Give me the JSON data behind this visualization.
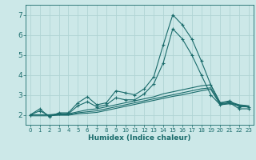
{
  "xlabel": "Humidex (Indice chaleur)",
  "xlim_min": -0.5,
  "xlim_max": 23.5,
  "ylim_min": 1.5,
  "ylim_max": 7.5,
  "xticks": [
    0,
    1,
    2,
    3,
    4,
    5,
    6,
    7,
    8,
    9,
    10,
    11,
    12,
    13,
    14,
    15,
    16,
    17,
    18,
    19,
    20,
    21,
    22,
    23
  ],
  "yticks": [
    2,
    3,
    4,
    5,
    6,
    7
  ],
  "background_color": "#cce8e8",
  "grid_color": "#b0d4d4",
  "line_color": "#1a6b6b",
  "xlabel_fontsize": 6.5,
  "xtick_fontsize": 5.0,
  "ytick_fontsize": 6.5,
  "lines": [
    {
      "y": [
        2.0,
        2.3,
        1.9,
        2.1,
        2.1,
        2.6,
        2.9,
        2.5,
        2.6,
        3.2,
        3.1,
        3.0,
        3.3,
        3.9,
        5.5,
        7.0,
        6.5,
        5.8,
        4.7,
        3.5,
        2.6,
        2.7,
        2.4,
        2.4
      ],
      "marker": "+"
    },
    {
      "y": [
        2.0,
        2.2,
        1.95,
        2.05,
        2.05,
        2.45,
        2.65,
        2.4,
        2.5,
        2.85,
        2.75,
        2.75,
        3.05,
        3.55,
        4.6,
        6.3,
        5.8,
        5.0,
        4.0,
        3.0,
        2.5,
        2.6,
        2.3,
        2.3
      ],
      "marker": "+"
    },
    {
      "y": [
        2.0,
        2.0,
        2.0,
        2.05,
        2.05,
        2.15,
        2.25,
        2.3,
        2.4,
        2.5,
        2.6,
        2.7,
        2.8,
        2.9,
        3.05,
        3.15,
        3.25,
        3.35,
        3.45,
        3.5,
        2.6,
        2.65,
        2.5,
        2.45
      ],
      "marker": null
    },
    {
      "y": [
        2.0,
        2.0,
        2.0,
        2.0,
        2.0,
        2.1,
        2.15,
        2.2,
        2.3,
        2.4,
        2.5,
        2.6,
        2.7,
        2.8,
        2.9,
        3.0,
        3.1,
        3.2,
        3.3,
        3.35,
        2.55,
        2.6,
        2.48,
        2.42
      ],
      "marker": null
    },
    {
      "y": [
        1.95,
        1.95,
        1.95,
        1.98,
        1.98,
        2.05,
        2.08,
        2.12,
        2.22,
        2.32,
        2.42,
        2.52,
        2.62,
        2.72,
        2.82,
        2.92,
        3.0,
        3.1,
        3.2,
        3.28,
        2.5,
        2.55,
        2.45,
        2.38
      ],
      "marker": null
    }
  ]
}
